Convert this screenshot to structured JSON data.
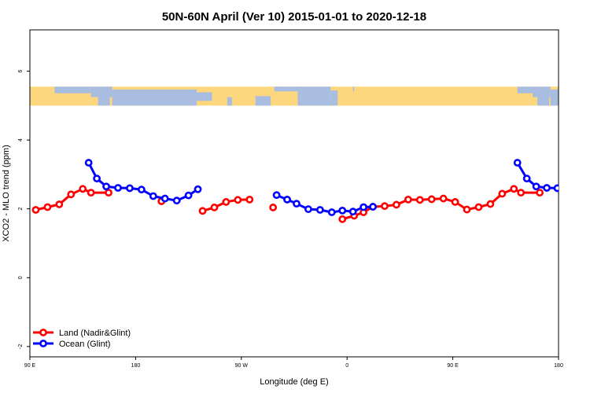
{
  "chart_data": {
    "type": "line",
    "title": "50N-60N April (Ver 10)   2015-01-01 to 2020-12-18",
    "xlabel": "Longitude (deg E)",
    "ylabel": "XCO2 - MLO trend (ppm)",
    "x_axis": {
      "range_deg_east": [
        90,
        540
      ],
      "ticks": [
        {
          "value": 90,
          "label": "90 E"
        },
        {
          "value": 180,
          "label": "180"
        },
        {
          "value": 270,
          "label": "90 W"
        },
        {
          "value": 360,
          "label": "0"
        },
        {
          "value": 450,
          "label": "90 E"
        },
        {
          "value": 540,
          "label": "180"
        }
      ]
    },
    "y_axis": {
      "range": [
        -2.3,
        7.2
      ],
      "ticks": [
        {
          "value": -2,
          "label": "-2"
        },
        {
          "value": 0,
          "label": "0"
        },
        {
          "value": 2,
          "label": "2"
        },
        {
          "value": 4,
          "label": "4"
        },
        {
          "value": 6,
          "label": "6"
        }
      ]
    },
    "map_band": {
      "y_range": [
        5.0,
        5.55
      ],
      "land_color": "#fcd77e",
      "ocean_color": "#a9bde0"
    },
    "legend": {
      "placement": "bottom-left"
    },
    "series": [
      {
        "name": "Land (Nadir&Glint)",
        "color": "#ff0000",
        "segments": [
          [
            [
              95,
              1.97
            ],
            [
              105,
              2.05
            ],
            [
              115,
              2.13
            ],
            [
              125,
              2.42
            ],
            [
              135,
              2.58
            ],
            [
              142,
              2.47
            ],
            [
              157,
              2.47
            ]
          ],
          [
            [
              202,
              2.22
            ]
          ],
          [
            [
              237,
              1.94
            ],
            [
              247,
              2.04
            ],
            [
              257,
              2.2
            ],
            [
              267,
              2.26
            ],
            [
              277,
              2.27
            ]
          ],
          [
            [
              297,
              2.04
            ]
          ],
          [
            [
              356,
              1.7
            ],
            [
              366,
              1.8
            ],
            [
              374,
              1.9
            ],
            [
              382,
              2.06
            ],
            [
              392,
              2.08
            ],
            [
              402,
              2.12
            ],
            [
              412,
              2.27
            ],
            [
              422,
              2.26
            ],
            [
              432,
              2.28
            ],
            [
              442,
              2.3
            ],
            [
              452,
              2.2
            ],
            [
              462,
              1.98
            ],
            [
              472,
              2.05
            ],
            [
              482,
              2.14
            ],
            [
              492,
              2.44
            ],
            [
              502,
              2.58
            ],
            [
              508,
              2.47
            ],
            [
              524,
              2.47
            ]
          ]
        ]
      },
      {
        "name": "Ocean (Glint)",
        "color": "#0000ff",
        "segments": [
          [
            [
              140,
              3.34
            ],
            [
              147,
              2.88
            ],
            [
              155,
              2.65
            ],
            [
              165,
              2.61
            ],
            [
              175,
              2.6
            ],
            [
              185,
              2.56
            ],
            [
              195,
              2.37
            ],
            [
              205,
              2.3
            ],
            [
              215,
              2.24
            ],
            [
              225,
              2.39
            ],
            [
              233,
              2.57
            ]
          ],
          [
            [
              300,
              2.4
            ],
            [
              309,
              2.27
            ],
            [
              317,
              2.15
            ],
            [
              327,
              1.99
            ],
            [
              337,
              1.97
            ],
            [
              347,
              1.9
            ],
            [
              356,
              1.95
            ],
            [
              365,
              1.92
            ],
            [
              374,
              2.05
            ],
            [
              382,
              2.06
            ]
          ],
          [
            [
              505,
              3.34
            ],
            [
              513,
              2.88
            ],
            [
              521,
              2.65
            ],
            [
              530,
              2.61
            ],
            [
              539,
              2.6
            ]
          ]
        ]
      }
    ]
  }
}
